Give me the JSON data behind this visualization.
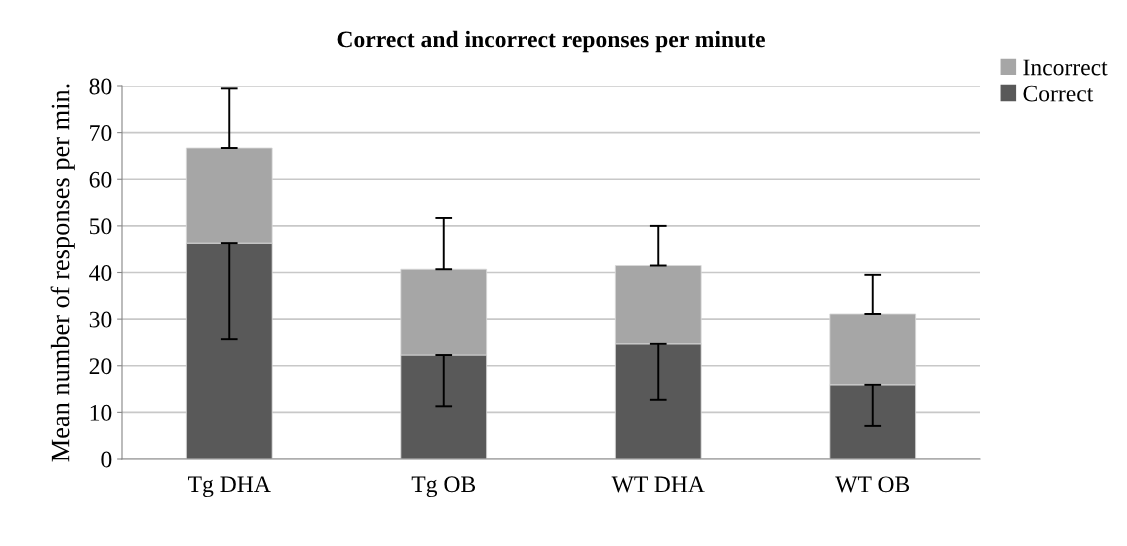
{
  "chart_data": {
    "type": "bar",
    "title": "Correct and incorrect reponses per minute",
    "ylabel": "Mean number of responses per min.",
    "categories": [
      "Tg DHA",
      "Tg OB",
      "WT DHA",
      "WT OB"
    ],
    "stacked": true,
    "series": [
      {
        "name": "Correct",
        "color": "#595959",
        "values": [
          46.3,
          22.3,
          24.7,
          15.9
        ],
        "errors": [
          [
            25.7,
            46.3
          ],
          [
            11.3,
            22.3
          ],
          [
            12.7,
            24.7
          ],
          [
            7.1,
            15.9
          ]
        ]
      },
      {
        "name": "Incorrect",
        "color": "#a6a6a6",
        "values": [
          20.4,
          18.4,
          16.8,
          15.2
        ],
        "errors": [
          [
            66.7,
            79.5
          ],
          [
            40.7,
            51.7
          ],
          [
            41.5,
            50.0
          ],
          [
            31.1,
            39.5
          ]
        ]
      }
    ],
    "ylim": [
      0,
      80
    ],
    "yticks": [
      0,
      10,
      20,
      30,
      40,
      50,
      60,
      70,
      80
    ],
    "grid": "y",
    "legend": "top right"
  }
}
